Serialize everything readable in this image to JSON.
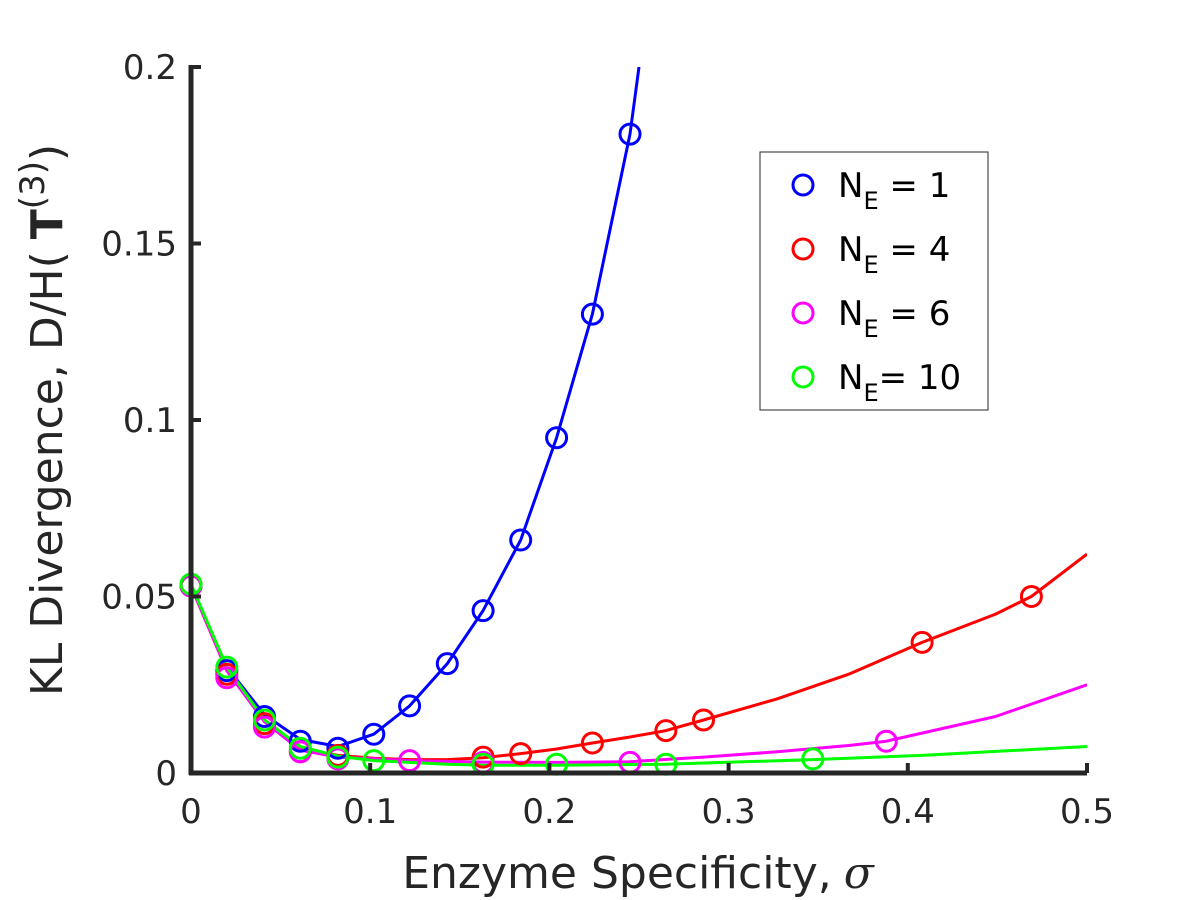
{
  "chart_data": {
    "type": "line",
    "xlabel": "Enzyme Specificity, σ",
    "xlabel_text": "Enzyme Specificity,",
    "xlabel_symbol": "σ",
    "ylabel": "KL Divergence, D/H( T(3))",
    "ylabel_text": "KL Divergence, D/H(",
    "ylabel_bold": "T",
    "ylabel_sup": "(3)",
    "ylabel_close": ")",
    "xlim": [
      0,
      0.5
    ],
    "ylim": [
      0,
      0.2
    ],
    "xticks": [
      {
        "value": 0,
        "label": "0"
      },
      {
        "value": 0.1,
        "label": "0.1"
      },
      {
        "value": 0.2,
        "label": "0.2"
      },
      {
        "value": 0.3,
        "label": "0.3"
      },
      {
        "value": 0.4,
        "label": "0.4"
      },
      {
        "value": 0.5,
        "label": "0.5"
      }
    ],
    "yticks": [
      {
        "value": 0,
        "label": "0"
      },
      {
        "value": 0.05,
        "label": "0.05"
      },
      {
        "value": 0.1,
        "label": "0.1"
      },
      {
        "value": 0.15,
        "label": "0.15"
      },
      {
        "value": 0.2,
        "label": "0.2"
      }
    ],
    "legend_position": "top-right",
    "grid": false,
    "series": [
      {
        "name": "N_E = 1",
        "legend_main": "N",
        "legend_sub": "E",
        "legend_rest": " = 1",
        "color": "#0000ff",
        "points": [
          [
            0.0,
            0.053
          ],
          [
            0.02,
            0.029
          ],
          [
            0.041,
            0.016
          ],
          [
            0.061,
            0.009
          ],
          [
            0.082,
            0.007
          ],
          [
            0.102,
            0.011
          ],
          [
            0.122,
            0.019
          ],
          [
            0.143,
            0.031
          ],
          [
            0.163,
            0.046
          ],
          [
            0.184,
            0.066
          ],
          [
            0.204,
            0.095
          ],
          [
            0.224,
            0.13
          ],
          [
            0.245,
            0.181
          ]
        ],
        "curve": [
          [
            0.0,
            0.053
          ],
          [
            0.02,
            0.03
          ],
          [
            0.041,
            0.0165
          ],
          [
            0.061,
            0.0095
          ],
          [
            0.082,
            0.0075
          ],
          [
            0.102,
            0.011
          ],
          [
            0.122,
            0.019
          ],
          [
            0.143,
            0.031
          ],
          [
            0.163,
            0.046
          ],
          [
            0.184,
            0.066
          ],
          [
            0.204,
            0.095
          ],
          [
            0.224,
            0.13
          ],
          [
            0.245,
            0.181
          ],
          [
            0.25,
            0.2
          ]
        ]
      },
      {
        "name": "N_E = 4",
        "legend_main": "N",
        "legend_sub": "E",
        "legend_rest": " = 4",
        "color": "#ff0000",
        "points": [
          [
            0.0,
            0.053
          ],
          [
            0.02,
            0.028
          ],
          [
            0.041,
            0.014
          ],
          [
            0.061,
            0.006
          ],
          [
            0.082,
            0.005
          ],
          [
            0.163,
            0.0045
          ],
          [
            0.184,
            0.0055
          ],
          [
            0.224,
            0.0085
          ],
          [
            0.265,
            0.012
          ],
          [
            0.286,
            0.015
          ],
          [
            0.408,
            0.037
          ],
          [
            0.469,
            0.05
          ]
        ],
        "curve": [
          [
            0.0,
            0.053
          ],
          [
            0.02,
            0.029
          ],
          [
            0.041,
            0.015
          ],
          [
            0.061,
            0.007
          ],
          [
            0.082,
            0.005
          ],
          [
            0.102,
            0.0042
          ],
          [
            0.122,
            0.0038
          ],
          [
            0.143,
            0.0038
          ],
          [
            0.163,
            0.0043
          ],
          [
            0.184,
            0.0055
          ],
          [
            0.204,
            0.0068
          ],
          [
            0.224,
            0.0085
          ],
          [
            0.245,
            0.0102
          ],
          [
            0.265,
            0.012
          ],
          [
            0.286,
            0.015
          ],
          [
            0.327,
            0.021
          ],
          [
            0.367,
            0.028
          ],
          [
            0.408,
            0.037
          ],
          [
            0.449,
            0.045
          ],
          [
            0.469,
            0.05
          ],
          [
            0.5,
            0.062
          ]
        ]
      },
      {
        "name": "N_E = 6",
        "legend_main": "N",
        "legend_sub": "E",
        "legend_rest": " = 6",
        "color": "#ff00ff",
        "points": [
          [
            0.0,
            0.053
          ],
          [
            0.02,
            0.027
          ],
          [
            0.041,
            0.013
          ],
          [
            0.061,
            0.006
          ],
          [
            0.082,
            0.004
          ],
          [
            0.122,
            0.0035
          ],
          [
            0.163,
            0.003
          ],
          [
            0.245,
            0.003
          ],
          [
            0.388,
            0.009
          ]
        ],
        "curve": [
          [
            0.0,
            0.053
          ],
          [
            0.02,
            0.029
          ],
          [
            0.041,
            0.0145
          ],
          [
            0.061,
            0.0065
          ],
          [
            0.082,
            0.0045
          ],
          [
            0.122,
            0.0035
          ],
          [
            0.163,
            0.0031
          ],
          [
            0.204,
            0.003
          ],
          [
            0.245,
            0.0032
          ],
          [
            0.286,
            0.0045
          ],
          [
            0.327,
            0.006
          ],
          [
            0.367,
            0.0078
          ],
          [
            0.388,
            0.009
          ],
          [
            0.449,
            0.016
          ],
          [
            0.5,
            0.025
          ]
        ]
      },
      {
        "name": "N_E= 10",
        "legend_main": "N",
        "legend_sub": "E",
        "legend_rest": "= 10",
        "color": "#00ff00",
        "points": [
          [
            0.0,
            0.0535
          ],
          [
            0.02,
            0.03
          ],
          [
            0.041,
            0.015
          ],
          [
            0.061,
            0.007
          ],
          [
            0.082,
            0.0045
          ],
          [
            0.102,
            0.0035
          ],
          [
            0.163,
            0.0025
          ],
          [
            0.204,
            0.0025
          ],
          [
            0.265,
            0.0025
          ],
          [
            0.347,
            0.004
          ]
        ],
        "curve": [
          [
            0.0,
            0.0535
          ],
          [
            0.02,
            0.03
          ],
          [
            0.041,
            0.015
          ],
          [
            0.061,
            0.0075
          ],
          [
            0.082,
            0.0048
          ],
          [
            0.102,
            0.0035
          ],
          [
            0.143,
            0.0025
          ],
          [
            0.163,
            0.0022
          ],
          [
            0.204,
            0.0022
          ],
          [
            0.265,
            0.0025
          ],
          [
            0.347,
            0.0038
          ],
          [
            0.408,
            0.005
          ],
          [
            0.5,
            0.0075
          ]
        ]
      }
    ]
  }
}
